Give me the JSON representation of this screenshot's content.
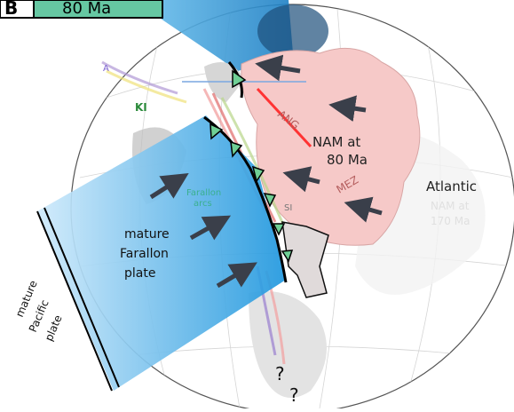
{
  "header": {
    "panel_letter": "B",
    "age_label": "80 Ma",
    "age_box_color": "#66c7a2"
  },
  "map": {
    "labels": {
      "nam_80_line1": "NAM at",
      "nam_80_line2": "80 Ma",
      "atlantic": "Atlantic",
      "nam_170_line1": "NAM at",
      "nam_170_line2": "170 Ma",
      "farallon_line1": "mature",
      "farallon_line2": "Farallon",
      "farallon_line3": "plate",
      "pacific_line1": "mature",
      "pacific_line2": "Pacific",
      "pacific_line3": "plate",
      "farallon_arcs_line1": "Farallon",
      "farallon_arcs_line2": "arcs",
      "ang": "ANG",
      "mez": "MEZ",
      "ki": "KI",
      "si": "SI",
      "a": "A",
      "question1": "?",
      "question2": "?"
    },
    "colors": {
      "nam_fill": "#f6c9c8",
      "slab_blue": "#2aa0e0",
      "ocean_line": "#cccccc",
      "ridge": "#000000",
      "arrow": "#3a3f4a",
      "triangle_fill": "#6fcf95"
    },
    "icons": [
      "arrow-icon",
      "subduction-triangle-icon"
    ]
  }
}
